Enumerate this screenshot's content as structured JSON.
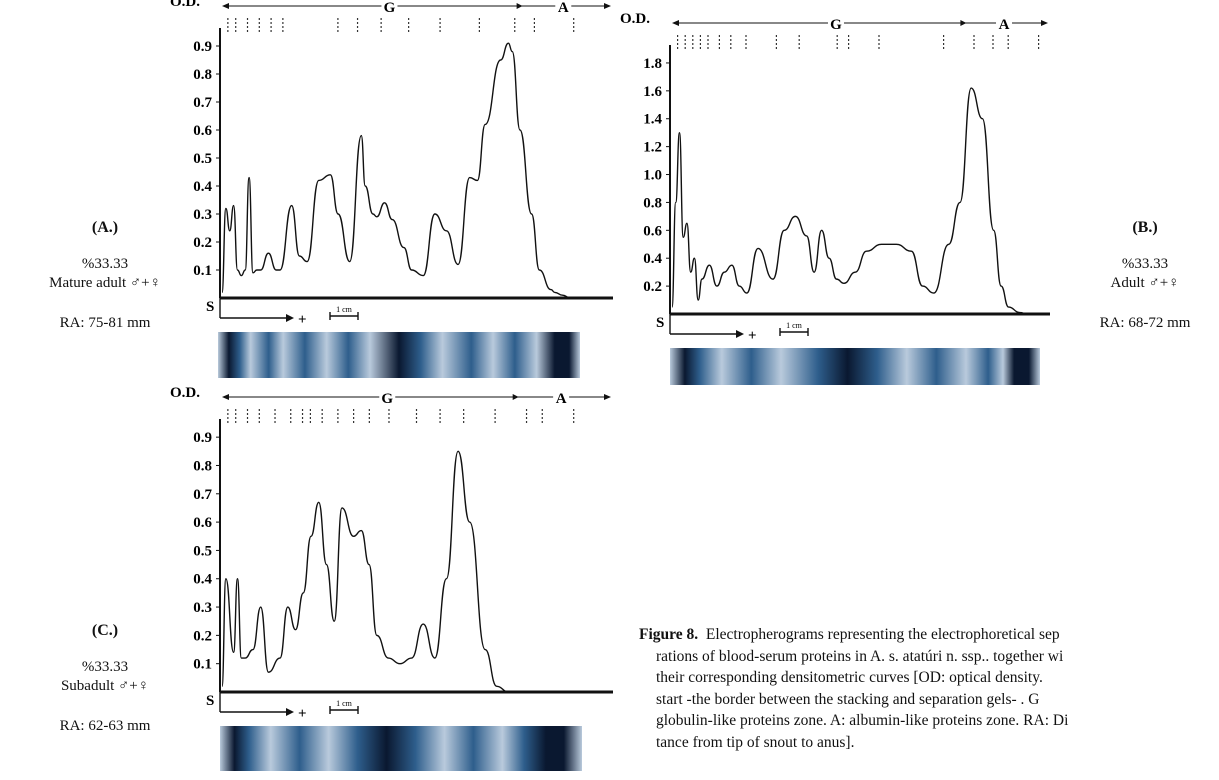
{
  "labels": {
    "od": "O.D.",
    "g_zone": "G",
    "a_zone": "A",
    "start": "S",
    "plus": "+",
    "scale": "1 cm"
  },
  "panels": {
    "A": {
      "label": "(A.)",
      "percent": "%33.33",
      "group": "Mature adult ♂+♀",
      "ra": "RA: 75-81 mm"
    },
    "B": {
      "label": "(B.)",
      "percent": "%33.33",
      "group": "Adult ♂+♀",
      "ra": "RA: 68-72 mm"
    },
    "C": {
      "label": "(C.)",
      "percent": "%33.33",
      "group": "Subadult ♂+♀",
      "ra": "RA: 62-63 mm"
    }
  },
  "caption": {
    "figure_label": "Figure 8.",
    "line1": "Electropherograms representing the electrophoretical sep",
    "line2": "rations of blood-serum proteins in A. s. atatúri n. ssp.. together wi",
    "line3": "their corresponding densitometric curves [OD: optical density.",
    "line4": "start -the border between the stacking and separation gels- . G",
    "line5": "globulin-like proteins zone. A: albumin-like proteins zone. RA: Di",
    "line6": "tance from tip of snout to anus]."
  },
  "chart_data": [
    {
      "type": "line",
      "panel": "A",
      "ylabel": "O.D.",
      "yticks": [
        "0.1",
        "0.2",
        "0.3",
        "0.4",
        "0.5",
        "0.6",
        "0.7",
        "0.8",
        "0.9"
      ],
      "ylim": [
        0,
        0.95
      ],
      "zones": [
        "G",
        "A"
      ],
      "x_relative_mobility": [
        0,
        0.01,
        0.02,
        0.03,
        0.04,
        0.05,
        0.06,
        0.07,
        0.08,
        0.09,
        0.1,
        0.12,
        0.14,
        0.15,
        0.18,
        0.2,
        0.22,
        0.25,
        0.28,
        0.3,
        0.33,
        0.36,
        0.37,
        0.39,
        0.4,
        0.42,
        0.44,
        0.47,
        0.49,
        0.52,
        0.55,
        0.58,
        0.61,
        0.64,
        0.66,
        0.68,
        0.72,
        0.74,
        0.75,
        0.77,
        0.8,
        0.82,
        0.85,
        0.86,
        0.88,
        0.9,
        0.91,
        0.92,
        0.94
      ],
      "od": [
        0.02,
        0.32,
        0.24,
        0.33,
        0.1,
        0.08,
        0.1,
        0.43,
        0.09,
        0.1,
        0.1,
        0.16,
        0.1,
        0.1,
        0.33,
        0.15,
        0.13,
        0.42,
        0.44,
        0.3,
        0.13,
        0.58,
        0.4,
        0.3,
        0.29,
        0.34,
        0.28,
        0.18,
        0.1,
        0.08,
        0.3,
        0.24,
        0.12,
        0.43,
        0.42,
        0.62,
        0.85,
        0.91,
        0.88,
        0.6,
        0.3,
        0.1,
        0.03,
        0.02,
        0.01,
        0.0,
        0.0,
        0.0,
        0.0
      ]
    },
    {
      "type": "line",
      "panel": "B",
      "ylabel": "O.D.",
      "yticks": [
        "0.2",
        "0.4",
        "0.6",
        "0.8",
        "1.0",
        "1.2",
        "1.4",
        "1.6",
        "1.8"
      ],
      "ylim": [
        0,
        1.9
      ],
      "zones": [
        "G",
        "A"
      ],
      "x_relative_mobility": [
        0,
        0.01,
        0.02,
        0.03,
        0.04,
        0.05,
        0.06,
        0.07,
        0.08,
        0.1,
        0.12,
        0.14,
        0.16,
        0.18,
        0.2,
        0.23,
        0.27,
        0.3,
        0.33,
        0.36,
        0.38,
        0.4,
        0.42,
        0.44,
        0.46,
        0.49,
        0.52,
        0.56,
        0.6,
        0.64,
        0.67,
        0.7,
        0.74,
        0.77,
        0.8,
        0.83,
        0.86,
        0.88,
        0.9,
        0.93,
        0.95,
        0.97,
        1.0
      ],
      "od": [
        0.05,
        0.8,
        1.3,
        0.55,
        0.65,
        0.3,
        0.4,
        0.1,
        0.25,
        0.35,
        0.2,
        0.3,
        0.35,
        0.2,
        0.15,
        0.47,
        0.25,
        0.6,
        0.7,
        0.56,
        0.3,
        0.6,
        0.4,
        0.25,
        0.22,
        0.3,
        0.45,
        0.5,
        0.5,
        0.45,
        0.2,
        0.15,
        0.5,
        0.8,
        1.62,
        1.4,
        0.6,
        0.2,
        0.05,
        0.01,
        0.0,
        0.0,
        0.0
      ]
    },
    {
      "type": "line",
      "panel": "C",
      "ylabel": "O.D.",
      "yticks": [
        "0.1",
        "0.2",
        "0.3",
        "0.4",
        "0.5",
        "0.6",
        "0.7",
        "0.8",
        "0.9"
      ],
      "ylim": [
        0,
        0.95
      ],
      "zones": [
        "G",
        "A"
      ],
      "x_relative_mobility": [
        0,
        0.01,
        0.03,
        0.04,
        0.05,
        0.06,
        0.08,
        0.1,
        0.12,
        0.15,
        0.17,
        0.19,
        0.21,
        0.23,
        0.25,
        0.27,
        0.29,
        0.31,
        0.34,
        0.36,
        0.38,
        0.4,
        0.43,
        0.46,
        0.49,
        0.52,
        0.55,
        0.58,
        0.61,
        0.64,
        0.68,
        0.71,
        0.74,
        0.77,
        0.8,
        0.83,
        0.85,
        0.87,
        0.89,
        0.91,
        0.93,
        0.95
      ],
      "od": [
        0.02,
        0.4,
        0.14,
        0.4,
        0.12,
        0.12,
        0.15,
        0.3,
        0.07,
        0.12,
        0.3,
        0.22,
        0.35,
        0.55,
        0.67,
        0.45,
        0.25,
        0.65,
        0.55,
        0.57,
        0.45,
        0.2,
        0.12,
        0.1,
        0.12,
        0.24,
        0.12,
        0.4,
        0.85,
        0.6,
        0.15,
        0.02,
        0.0,
        0.0,
        0.0,
        0.0,
        0.0,
        0.0,
        0.0,
        0.0,
        0.0,
        0.0
      ]
    }
  ],
  "colors": {
    "curve": "#111111",
    "gel_dark": "#0a1830",
    "gel_mid": "#2e5e8c",
    "gel_light": "#b9cadc"
  }
}
